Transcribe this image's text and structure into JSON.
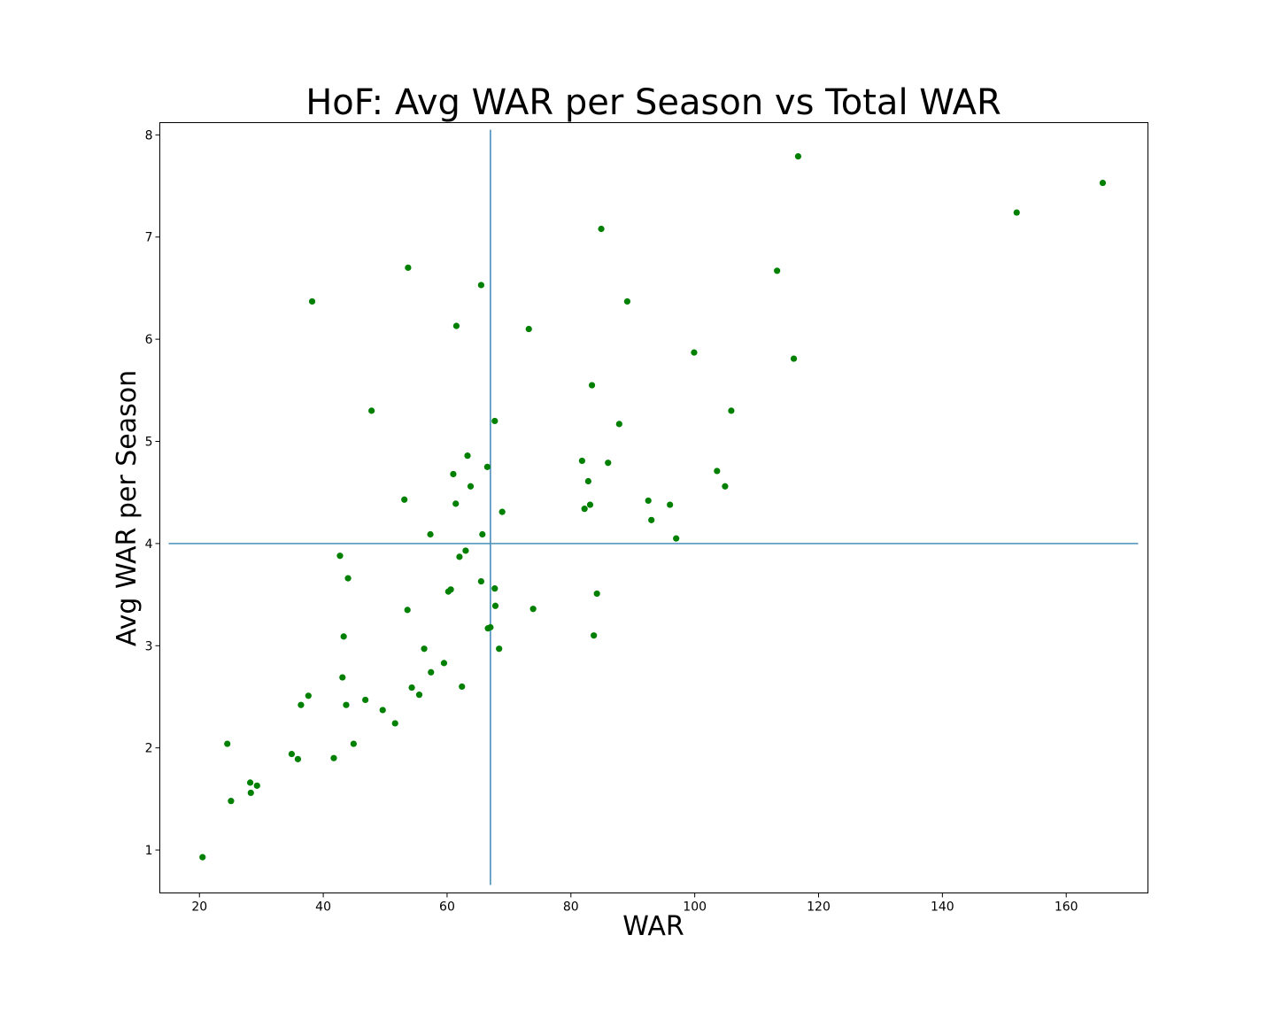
{
  "chart_data": {
    "type": "scatter",
    "title": "HoF: Avg WAR per Season vs Total WAR",
    "xlabel": "WAR",
    "ylabel": "Avg WAR per Season",
    "xlim": [
      13.6,
      173.2
    ],
    "ylim": [
      0.58,
      8.12
    ],
    "xticks": [
      20,
      40,
      60,
      80,
      100,
      120,
      140,
      160
    ],
    "yticks": [
      1,
      2,
      3,
      4,
      5,
      6,
      7,
      8
    ],
    "grid": false,
    "legend": "none",
    "colors": {
      "points": "#008000",
      "reference_lines": "#4a8fb8"
    },
    "reference_lines": {
      "vertical_x": 67.0,
      "horizontal_y": 4.0
    },
    "points": [
      [
        20.5,
        0.93
      ],
      [
        24.5,
        2.04
      ],
      [
        25.1,
        1.48
      ],
      [
        28.2,
        1.66
      ],
      [
        28.3,
        1.56
      ],
      [
        29.3,
        1.63
      ],
      [
        34.9,
        1.94
      ],
      [
        35.9,
        1.89
      ],
      [
        36.4,
        2.42
      ],
      [
        37.6,
        2.51
      ],
      [
        38.2,
        6.37
      ],
      [
        41.7,
        1.9
      ],
      [
        42.7,
        3.88
      ],
      [
        43.1,
        2.69
      ],
      [
        43.3,
        3.09
      ],
      [
        43.7,
        2.42
      ],
      [
        44.0,
        3.66
      ],
      [
        44.9,
        2.04
      ],
      [
        46.8,
        2.47
      ],
      [
        47.8,
        5.3
      ],
      [
        49.6,
        2.37
      ],
      [
        51.6,
        2.24
      ],
      [
        53.1,
        4.43
      ],
      [
        53.6,
        3.35
      ],
      [
        53.7,
        6.7
      ],
      [
        54.3,
        2.59
      ],
      [
        55.5,
        2.52
      ],
      [
        56.3,
        2.97
      ],
      [
        57.3,
        4.09
      ],
      [
        57.4,
        2.74
      ],
      [
        59.5,
        2.83
      ],
      [
        60.2,
        3.53
      ],
      [
        60.6,
        3.55
      ],
      [
        61.0,
        4.68
      ],
      [
        61.5,
        6.13
      ],
      [
        61.4,
        4.39
      ],
      [
        62.0,
        3.87
      ],
      [
        62.4,
        2.6
      ],
      [
        63.0,
        3.93
      ],
      [
        63.3,
        4.86
      ],
      [
        63.8,
        4.56
      ],
      [
        65.5,
        6.53
      ],
      [
        65.5,
        3.63
      ],
      [
        65.7,
        4.09
      ],
      [
        66.5,
        4.75
      ],
      [
        66.6,
        3.17
      ],
      [
        67.0,
        3.18
      ],
      [
        67.7,
        5.2
      ],
      [
        67.7,
        3.56
      ],
      [
        67.8,
        3.39
      ],
      [
        68.4,
        2.97
      ],
      [
        68.9,
        4.31
      ],
      [
        73.2,
        6.1
      ],
      [
        73.9,
        3.36
      ],
      [
        81.8,
        4.81
      ],
      [
        82.2,
        4.34
      ],
      [
        82.8,
        4.61
      ],
      [
        83.1,
        4.38
      ],
      [
        83.4,
        5.55
      ],
      [
        83.7,
        3.1
      ],
      [
        84.2,
        3.51
      ],
      [
        84.9,
        7.08
      ],
      [
        86.0,
        4.79
      ],
      [
        87.8,
        5.17
      ],
      [
        89.1,
        6.37
      ],
      [
        92.5,
        4.42
      ],
      [
        93.0,
        4.23
      ],
      [
        96.0,
        4.38
      ],
      [
        97.0,
        4.05
      ],
      [
        99.9,
        5.87
      ],
      [
        103.6,
        4.71
      ],
      [
        104.9,
        4.56
      ],
      [
        105.9,
        5.3
      ],
      [
        113.3,
        6.67
      ],
      [
        116.0,
        5.81
      ],
      [
        116.7,
        7.79
      ],
      [
        152.0,
        7.24
      ],
      [
        165.9,
        7.53
      ]
    ]
  }
}
